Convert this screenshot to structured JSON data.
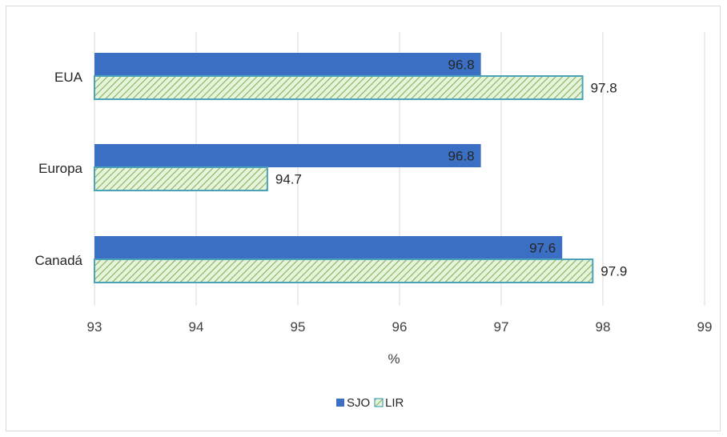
{
  "chart_data": {
    "type": "bar",
    "orientation": "horizontal",
    "categories": [
      "EUA",
      "Europa",
      "Canadá"
    ],
    "series": [
      {
        "name": "SJO",
        "values": [
          96.8,
          96.8,
          97.6
        ],
        "color": "#3a6fc4",
        "pattern": "solid"
      },
      {
        "name": "LIR",
        "values": [
          97.8,
          94.7,
          97.9
        ],
        "color": "#4aa3b8",
        "pattern": "diagonal-hatch-green"
      }
    ],
    "xlabel": "%",
    "ylabel": "",
    "xlim": [
      93,
      99
    ],
    "xticks": [
      "93",
      "94",
      "95",
      "96",
      "97",
      "98",
      "99"
    ],
    "data_labels": {
      "EUA": [
        "96.8",
        "97.8"
      ],
      "Europa": [
        "96.8",
        "94.7"
      ],
      "Canadá": [
        "97.6",
        "97.9"
      ]
    },
    "grid": true,
    "legend": "bottom-center"
  }
}
